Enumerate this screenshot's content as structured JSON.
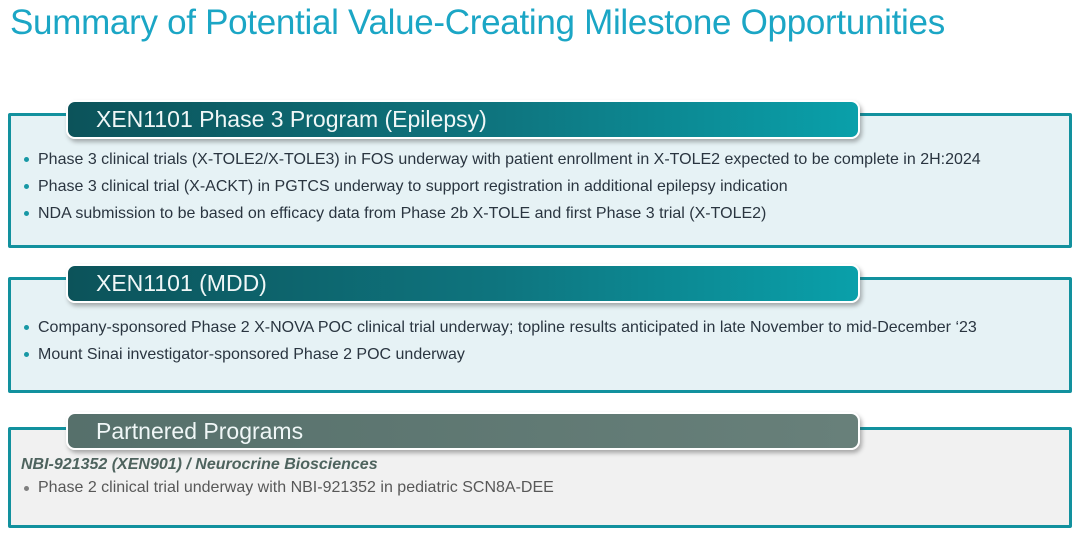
{
  "slide": {
    "title": "Summary of Potential Value-Creating Milestone Opportunities"
  },
  "colors": {
    "title_text": "#1ba6c5",
    "panel_border": "#12919e",
    "teal_panel_bg": "#e6f2f5",
    "gray_panel_bg": "#f1f1f1",
    "teal_banner_gradient_start": "#0c535a",
    "teal_banner_gradient_end": "#0aa0aa",
    "gray_banner_gradient_start": "#56706b",
    "gray_banner_gradient_end": "#68807a",
    "banner_text": "#f0f7f7",
    "bullet_dot_teal": "#1798a5",
    "bullet_dot_gray": "#7f7f7f",
    "body_text": "#2a3540",
    "partner_heading_text": "#4e635e",
    "partner_body_text": "#585858"
  },
  "sections": [
    {
      "header": "XEN1101 Phase 3 Program (Epilepsy)",
      "bullets": [
        "Phase 3 clinical trials (X-TOLE2/X-TOLE3) in FOS underway with patient enrollment in X-TOLE2 expected to be complete in 2H:2024",
        "Phase 3 clinical trial (X-ACKT) in PGTCS underway to support registration in additional epilepsy indication",
        "NDA submission to be based on efficacy data from Phase 2b X-TOLE and first Phase 3 trial (X-TOLE2)"
      ]
    },
    {
      "header": "XEN1101 (MDD)",
      "bullets": [
        "Company-sponsored Phase 2 X-NOVA POC clinical trial underway; topline results anticipated in late November to mid-December ‘23",
        "Mount Sinai investigator-sponsored Phase 2 POC underway"
      ]
    },
    {
      "header": "Partnered Programs",
      "subheading": "NBI-921352 (XEN901) / Neurocrine Biosciences",
      "bullets": [
        "Phase 2 clinical trial underway with NBI-921352 in pediatric SCN8A-DEE"
      ]
    }
  ]
}
